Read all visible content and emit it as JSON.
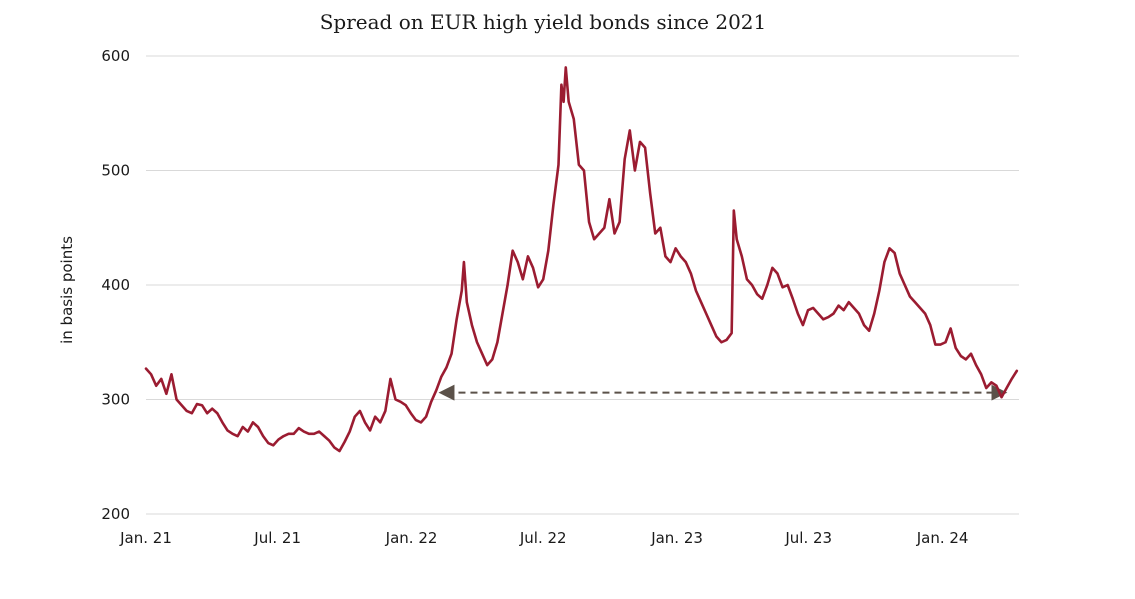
{
  "chart_data": {
    "type": "line",
    "title": "Spread on EUR high yield bonds since 2021",
    "xlabel": "",
    "ylabel": "in basis points",
    "xlim": [
      "2021-01-01",
      "2024-04-15"
    ],
    "ylim": [
      200,
      600
    ],
    "y_ticks": [
      200,
      300,
      400,
      500,
      600
    ],
    "x_ticks": [
      {
        "date": "2021-01-01",
        "label": "Jan. 21"
      },
      {
        "date": "2021-07-01",
        "label": "Jul. 21"
      },
      {
        "date": "2022-01-01",
        "label": "Jan. 22"
      },
      {
        "date": "2022-07-01",
        "label": "Jul. 22"
      },
      {
        "date": "2023-01-01",
        "label": "Jan. 23"
      },
      {
        "date": "2023-07-01",
        "label": "Jul. 23"
      },
      {
        "date": "2024-01-01",
        "label": "Jan. 24"
      }
    ],
    "grid": "horizontal",
    "line_color": "#9b1c31",
    "annotation_color": "#5b5149",
    "series": [
      {
        "name": "",
        "points": [
          [
            "2021-01-01",
            327
          ],
          [
            "2021-01-08",
            322
          ],
          [
            "2021-01-15",
            312
          ],
          [
            "2021-01-22",
            318
          ],
          [
            "2021-01-29",
            305
          ],
          [
            "2021-02-05",
            322
          ],
          [
            "2021-02-12",
            300
          ],
          [
            "2021-02-19",
            295
          ],
          [
            "2021-02-26",
            290
          ],
          [
            "2021-03-05",
            288
          ],
          [
            "2021-03-12",
            296
          ],
          [
            "2021-03-19",
            295
          ],
          [
            "2021-03-26",
            288
          ],
          [
            "2021-04-02",
            292
          ],
          [
            "2021-04-09",
            288
          ],
          [
            "2021-04-16",
            280
          ],
          [
            "2021-04-23",
            273
          ],
          [
            "2021-04-30",
            270
          ],
          [
            "2021-05-07",
            268
          ],
          [
            "2021-05-14",
            276
          ],
          [
            "2021-05-21",
            272
          ],
          [
            "2021-05-28",
            280
          ],
          [
            "2021-06-04",
            276
          ],
          [
            "2021-06-11",
            268
          ],
          [
            "2021-06-18",
            262
          ],
          [
            "2021-06-25",
            260
          ],
          [
            "2021-07-02",
            265
          ],
          [
            "2021-07-09",
            268
          ],
          [
            "2021-07-16",
            270
          ],
          [
            "2021-07-23",
            270
          ],
          [
            "2021-07-30",
            275
          ],
          [
            "2021-08-06",
            272
          ],
          [
            "2021-08-13",
            270
          ],
          [
            "2021-08-20",
            270
          ],
          [
            "2021-08-27",
            272
          ],
          [
            "2021-09-03",
            268
          ],
          [
            "2021-09-10",
            264
          ],
          [
            "2021-09-17",
            258
          ],
          [
            "2021-09-24",
            255
          ],
          [
            "2021-10-01",
            263
          ],
          [
            "2021-10-08",
            272
          ],
          [
            "2021-10-15",
            285
          ],
          [
            "2021-10-22",
            290
          ],
          [
            "2021-10-29",
            280
          ],
          [
            "2021-11-05",
            273
          ],
          [
            "2021-11-12",
            285
          ],
          [
            "2021-11-19",
            280
          ],
          [
            "2021-11-26",
            290
          ],
          [
            "2021-12-03",
            318
          ],
          [
            "2021-12-10",
            300
          ],
          [
            "2021-12-17",
            298
          ],
          [
            "2021-12-24",
            295
          ],
          [
            "2021-12-31",
            288
          ],
          [
            "2022-01-07",
            282
          ],
          [
            "2022-01-14",
            280
          ],
          [
            "2022-01-21",
            285
          ],
          [
            "2022-01-28",
            298
          ],
          [
            "2022-02-04",
            308
          ],
          [
            "2022-02-11",
            320
          ],
          [
            "2022-02-18",
            328
          ],
          [
            "2022-02-25",
            340
          ],
          [
            "2022-03-04",
            370
          ],
          [
            "2022-03-11",
            395
          ],
          [
            "2022-03-14",
            420
          ],
          [
            "2022-03-18",
            385
          ],
          [
            "2022-03-25",
            365
          ],
          [
            "2022-04-01",
            350
          ],
          [
            "2022-04-08",
            340
          ],
          [
            "2022-04-15",
            330
          ],
          [
            "2022-04-22",
            335
          ],
          [
            "2022-04-29",
            350
          ],
          [
            "2022-05-06",
            375
          ],
          [
            "2022-05-13",
            400
          ],
          [
            "2022-05-20",
            430
          ],
          [
            "2022-05-27",
            420
          ],
          [
            "2022-06-03",
            405
          ],
          [
            "2022-06-10",
            425
          ],
          [
            "2022-06-17",
            415
          ],
          [
            "2022-06-24",
            398
          ],
          [
            "2022-07-01",
            405
          ],
          [
            "2022-07-08",
            430
          ],
          [
            "2022-07-15",
            470
          ],
          [
            "2022-07-22",
            505
          ],
          [
            "2022-07-26",
            575
          ],
          [
            "2022-07-29",
            560
          ],
          [
            "2022-08-01",
            590
          ],
          [
            "2022-08-05",
            560
          ],
          [
            "2022-08-12",
            545
          ],
          [
            "2022-08-19",
            505
          ],
          [
            "2022-08-26",
            500
          ],
          [
            "2022-09-02",
            455
          ],
          [
            "2022-09-09",
            440
          ],
          [
            "2022-09-16",
            445
          ],
          [
            "2022-09-23",
            450
          ],
          [
            "2022-09-30",
            475
          ],
          [
            "2022-10-07",
            445
          ],
          [
            "2022-10-14",
            455
          ],
          [
            "2022-10-21",
            510
          ],
          [
            "2022-10-28",
            535
          ],
          [
            "2022-11-04",
            500
          ],
          [
            "2022-11-11",
            525
          ],
          [
            "2022-11-18",
            520
          ],
          [
            "2022-11-25",
            480
          ],
          [
            "2022-12-02",
            445
          ],
          [
            "2022-12-09",
            450
          ],
          [
            "2022-12-16",
            425
          ],
          [
            "2022-12-23",
            420
          ],
          [
            "2022-12-30",
            432
          ],
          [
            "2023-01-06",
            425
          ],
          [
            "2023-01-13",
            420
          ],
          [
            "2023-01-20",
            410
          ],
          [
            "2023-01-27",
            395
          ],
          [
            "2023-02-03",
            385
          ],
          [
            "2023-02-10",
            375
          ],
          [
            "2023-02-17",
            365
          ],
          [
            "2023-02-24",
            355
          ],
          [
            "2023-03-03",
            350
          ],
          [
            "2023-03-10",
            352
          ],
          [
            "2023-03-17",
            358
          ],
          [
            "2023-03-20",
            465
          ],
          [
            "2023-03-24",
            440
          ],
          [
            "2023-03-31",
            425
          ],
          [
            "2023-04-07",
            405
          ],
          [
            "2023-04-14",
            400
          ],
          [
            "2023-04-21",
            392
          ],
          [
            "2023-04-28",
            388
          ],
          [
            "2023-05-05",
            400
          ],
          [
            "2023-05-12",
            415
          ],
          [
            "2023-05-19",
            410
          ],
          [
            "2023-05-26",
            398
          ],
          [
            "2023-06-02",
            400
          ],
          [
            "2023-06-09",
            388
          ],
          [
            "2023-06-16",
            375
          ],
          [
            "2023-06-23",
            365
          ],
          [
            "2023-06-30",
            378
          ],
          [
            "2023-07-07",
            380
          ],
          [
            "2023-07-14",
            375
          ],
          [
            "2023-07-21",
            370
          ],
          [
            "2023-07-28",
            372
          ],
          [
            "2023-08-04",
            375
          ],
          [
            "2023-08-11",
            382
          ],
          [
            "2023-08-18",
            378
          ],
          [
            "2023-08-25",
            385
          ],
          [
            "2023-09-01",
            380
          ],
          [
            "2023-09-08",
            375
          ],
          [
            "2023-09-15",
            365
          ],
          [
            "2023-09-22",
            360
          ],
          [
            "2023-09-29",
            375
          ],
          [
            "2023-10-06",
            395
          ],
          [
            "2023-10-13",
            420
          ],
          [
            "2023-10-20",
            432
          ],
          [
            "2023-10-27",
            428
          ],
          [
            "2023-11-03",
            410
          ],
          [
            "2023-11-10",
            400
          ],
          [
            "2023-11-17",
            390
          ],
          [
            "2023-11-24",
            385
          ],
          [
            "2023-12-01",
            380
          ],
          [
            "2023-12-08",
            375
          ],
          [
            "2023-12-15",
            365
          ],
          [
            "2023-12-22",
            348
          ],
          [
            "2023-12-29",
            348
          ],
          [
            "2024-01-05",
            350
          ],
          [
            "2024-01-12",
            362
          ],
          [
            "2024-01-19",
            345
          ],
          [
            "2024-01-26",
            338
          ],
          [
            "2024-02-02",
            335
          ],
          [
            "2024-02-09",
            340
          ],
          [
            "2024-02-16",
            330
          ],
          [
            "2024-02-23",
            322
          ],
          [
            "2024-03-01",
            310
          ],
          [
            "2024-03-08",
            315
          ],
          [
            "2024-03-15",
            312
          ],
          [
            "2024-03-22",
            302
          ],
          [
            "2024-03-29",
            310
          ],
          [
            "2024-04-05",
            318
          ],
          [
            "2024-04-12",
            325
          ]
        ]
      }
    ],
    "annotations": [
      {
        "type": "double-arrow",
        "x_start": "2022-02-18",
        "x_end": "2024-03-19",
        "y": 306
      }
    ]
  }
}
